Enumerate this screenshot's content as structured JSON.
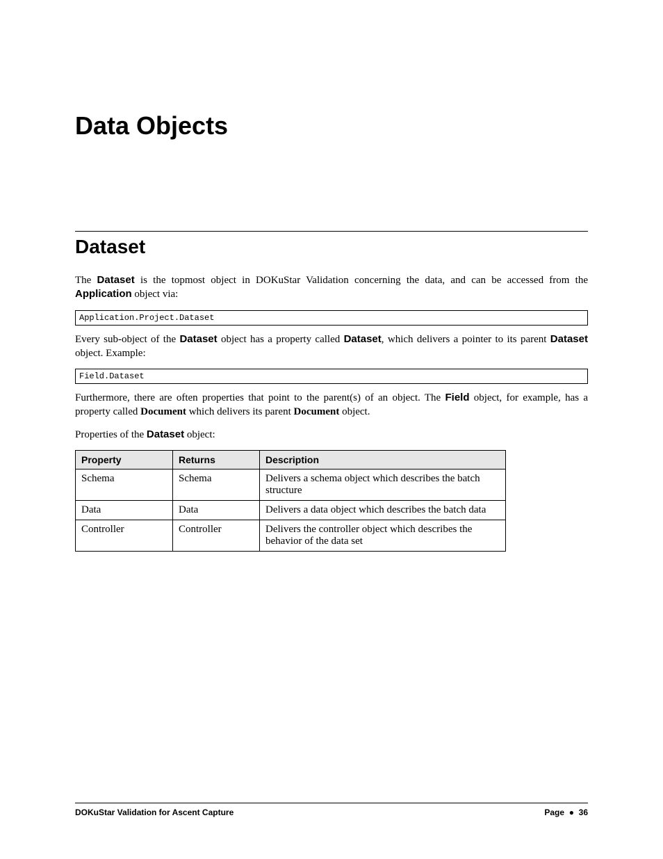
{
  "heading1": "Data Objects",
  "heading2": "Dataset",
  "para1": {
    "pre": "The ",
    "b1": "Dataset",
    "mid": " is the topmost object in DOKuStar Validation concerning the data, and can be accessed from the ",
    "b2": "Application",
    "post": " object via:"
  },
  "code1": "Application.Project.Dataset",
  "para2": {
    "pre": "Every sub-object of the ",
    "b1": "Dataset",
    "mid1": " object has a property called ",
    "b2": "Dataset",
    "mid2": ", which delivers a pointer to its parent ",
    "b3": "Dataset",
    "post": " object. Example:"
  },
  "code2": "Field.Dataset",
  "para3": {
    "pre": "Furthermore, there are often properties that point to the parent(s) of an object. The ",
    "b1": "Field",
    "mid1": " object, for example, has a property called ",
    "b2": "Document",
    "mid2": " which delivers its parent ",
    "b3": "Document",
    "post": " object."
  },
  "para4": {
    "pre": "Properties of the ",
    "b1": "Dataset",
    "post": " object:"
  },
  "table": {
    "headers": {
      "c1": "Property",
      "c2": "Returns",
      "c3": "Description"
    },
    "rows": [
      {
        "c1": "Schema",
        "c2": "Schema",
        "c3": "Delivers a schema object which describes the batch structure"
      },
      {
        "c1": "Data",
        "c2": "Data",
        "c3": "Delivers a data object which describes the batch data"
      },
      {
        "c1": "Controller",
        "c2": "Controller",
        "c3": "Delivers the controller object which describes the behavior of the data set"
      }
    ]
  },
  "footer": {
    "left": "DOKuStar Validation for Ascent Capture",
    "right_label": "Page",
    "right_bullet": "●",
    "right_num": "36"
  }
}
